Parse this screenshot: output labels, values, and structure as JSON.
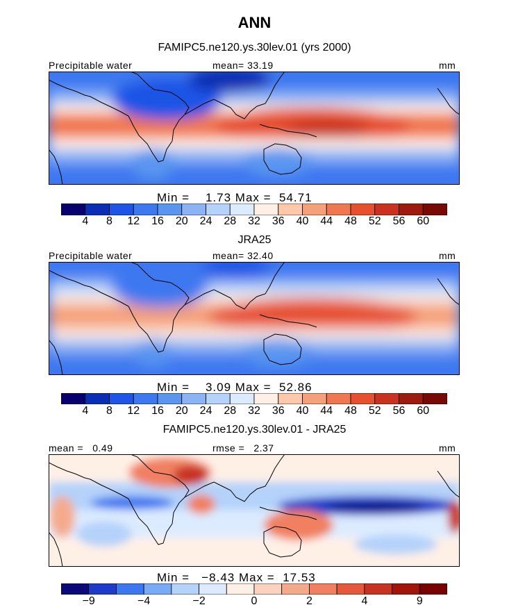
{
  "main_title": "ANN",
  "chart_data": [
    {
      "type": "heatmap",
      "title": "FAMIPC5.ne120.ys.30lev.01 (yrs 2000)",
      "left_label": "Precipitable water",
      "center_label": "mean=  33.19",
      "units": "mm",
      "min_label": "Min =",
      "min_value": "1.73",
      "max_label": "Max =",
      "max_value": "54.71",
      "colorbar_levels": [
        "4",
        "8",
        "12",
        "16",
        "20",
        "24",
        "28",
        "32",
        "36",
        "40",
        "44",
        "48",
        "52",
        "56",
        "60"
      ]
    },
    {
      "type": "heatmap",
      "title": "JRA25",
      "left_label": "Precipitable water",
      "center_label": "mean=  32.40",
      "units": "mm",
      "min_label": "Min =",
      "min_value": "3.09",
      "max_label": "Max =",
      "max_value": "52.86",
      "colorbar_levels": [
        "4",
        "8",
        "12",
        "16",
        "20",
        "24",
        "28",
        "32",
        "36",
        "40",
        "44",
        "48",
        "52",
        "56",
        "60"
      ]
    },
    {
      "type": "heatmap",
      "title": "FAMIPC5.ne120.ys.30lev.01 - JRA25",
      "left_label": "mean =   0.49",
      "center_label": "rmse =   2.37",
      "units": "mm",
      "min_label": "Min =",
      "min_value": "−8.43",
      "max_label": "Max =",
      "max_value": "17.53",
      "colorbar_levels": [
        "−9",
        "",
        "−4",
        "",
        "−2",
        "",
        "0",
        "",
        "2",
        "",
        "4",
        "",
        "9",
        ""
      ]
    }
  ],
  "colors": {
    "full_scale": [
      "#08006e",
      "#0a2eb4",
      "#1e55e6",
      "#3c78f0",
      "#5a96f0",
      "#8cb4f5",
      "#b4d2fa",
      "#dcebff",
      "#fff0e6",
      "#ffc8aa",
      "#f5a078",
      "#f07850",
      "#e6502d",
      "#c8321e",
      "#a0190f",
      "#780a05"
    ],
    "diff_scale": [
      "#0a0a78",
      "#1e3cc8",
      "#3c78f0",
      "#78aaf5",
      "#b4d2fa",
      "#dcebff",
      "#fff0e6",
      "#fad2be",
      "#f5aa8c",
      "#f08060",
      "#e6583c",
      "#c83220",
      "#a0140a",
      "#780005"
    ],
    "coast": "#000000"
  }
}
